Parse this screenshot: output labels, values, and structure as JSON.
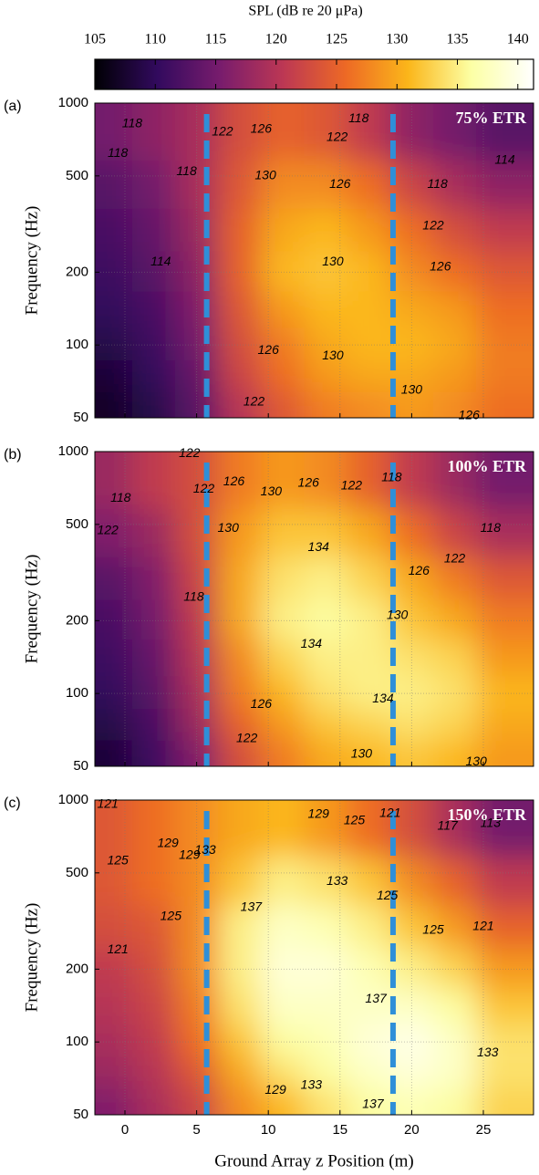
{
  "chart_data": [
    {
      "type": "colorbar",
      "label": "SPL (dB re 20 μPa)",
      "clim": [
        105,
        141.3
      ],
      "ticks": [
        105,
        110,
        115,
        120,
        125,
        130,
        135,
        140
      ],
      "colors": [
        "#000004",
        "#320a5e",
        "#781c6d",
        "#bc3754",
        "#ed6925",
        "#fbb61a",
        "#fcffa4",
        "#ffffff"
      ]
    },
    {
      "type": "heatmap",
      "panel_label": "(a)",
      "title": "75% ETR",
      "ylabel": "Frequency (Hz)",
      "yscale": "log",
      "grid": true,
      "xticklabels": false,
      "xlim": [
        -2.1,
        28.5
      ],
      "xticks": [
        0,
        5,
        10,
        15,
        20,
        25
      ],
      "ylim": [
        50,
        1000
      ],
      "yticks": [
        50,
        100,
        200,
        500,
        1000
      ],
      "x": [
        -1,
        2,
        5,
        8,
        11,
        14,
        17,
        20,
        23,
        26
      ],
      "y": [
        55,
        75,
        100,
        140,
        200,
        300,
        450,
        750
      ],
      "z": [
        [
          107,
          109,
          113,
          120,
          124,
          127,
          128,
          129,
          128,
          126
        ],
        [
          108,
          110,
          114,
          122,
          126,
          129,
          130,
          130,
          129,
          127
        ],
        [
          109,
          111,
          115,
          123,
          127,
          130,
          131,
          131,
          130,
          127
        ],
        [
          110,
          112,
          116,
          124,
          129,
          131,
          131,
          130,
          129,
          126
        ],
        [
          111,
          113,
          117,
          125,
          131,
          132,
          131,
          128,
          126,
          124
        ],
        [
          112,
          114,
          118,
          125,
          130,
          131,
          129,
          126,
          123,
          121
        ],
        [
          113,
          115,
          119,
          124,
          128,
          128,
          126,
          122,
          119,
          117
        ],
        [
          115,
          117,
          119,
          123,
          125,
          124,
          121,
          117,
          115,
          113
        ]
      ],
      "reference_lines": {
        "x": [
          5.7,
          18.7
        ],
        "color": "#2f8fd8"
      },
      "contour_labels": [
        {
          "value": 118,
          "x": 0.5,
          "y": 820
        },
        {
          "value": 118,
          "x": -0.5,
          "y": 620
        },
        {
          "value": 118,
          "x": 4.3,
          "y": 520
        },
        {
          "value": 122,
          "x": 6.8,
          "y": 760
        },
        {
          "value": 126,
          "x": 9.5,
          "y": 780
        },
        {
          "value": 130,
          "x": 9.8,
          "y": 500
        },
        {
          "value": 122,
          "x": 14.8,
          "y": 720
        },
        {
          "value": 118,
          "x": 16.3,
          "y": 860
        },
        {
          "value": 126,
          "x": 15,
          "y": 460
        },
        {
          "value": 114,
          "x": 2.5,
          "y": 220
        },
        {
          "value": 130,
          "x": 14.5,
          "y": 220
        },
        {
          "value": 122,
          "x": 21.5,
          "y": 310
        },
        {
          "value": 126,
          "x": 22,
          "y": 210
        },
        {
          "value": 118,
          "x": 21.8,
          "y": 460
        },
        {
          "value": 114,
          "x": 26.5,
          "y": 580
        },
        {
          "value": 126,
          "x": 10,
          "y": 95
        },
        {
          "value": 130,
          "x": 14.5,
          "y": 90
        },
        {
          "value": 130,
          "x": 20,
          "y": 65
        },
        {
          "value": 122,
          "x": 9,
          "y": 58
        },
        {
          "value": 126,
          "x": 24,
          "y": 51
        }
      ]
    },
    {
      "type": "heatmap",
      "panel_label": "(b)",
      "title": "100% ETR",
      "ylabel": "Frequency (Hz)",
      "yscale": "log",
      "grid": true,
      "xticklabels": false,
      "xlim": [
        -2.1,
        28.5
      ],
      "xticks": [
        0,
        5,
        10,
        15,
        20,
        25
      ],
      "ylim": [
        50,
        1000
      ],
      "yticks": [
        50,
        100,
        200,
        500,
        1000
      ],
      "x": [
        -1,
        2,
        5,
        8,
        11,
        14,
        17,
        20,
        23,
        26
      ],
      "y": [
        55,
        75,
        100,
        140,
        200,
        300,
        450,
        750
      ],
      "z": [
        [
          108,
          111,
          116,
          123,
          127,
          130,
          131,
          132,
          131,
          129
        ],
        [
          109,
          112,
          118,
          125,
          129,
          132,
          133,
          134,
          133,
          130
        ],
        [
          110,
          113,
          119,
          127,
          131,
          134,
          135,
          135,
          134,
          131
        ],
        [
          111,
          114,
          120,
          128,
          133,
          135,
          135,
          134,
          133,
          129
        ],
        [
          112,
          115,
          121,
          130,
          135,
          136,
          135,
          132,
          130,
          127
        ],
        [
          113,
          116,
          122,
          130,
          134,
          135,
          133,
          130,
          127,
          124
        ],
        [
          116,
          118,
          123,
          129,
          132,
          132,
          130,
          126,
          122,
          119
        ],
        [
          118,
          121,
          123,
          127,
          129,
          128,
          125,
          121,
          118,
          115
        ]
      ],
      "reference_lines": {
        "x": [
          5.7,
          18.7
        ],
        "color": "#2f8fd8"
      },
      "contour_labels": [
        {
          "value": 122,
          "x": 4.5,
          "y": 980
        },
        {
          "value": 118,
          "x": -0.3,
          "y": 640
        },
        {
          "value": 122,
          "x": -1.2,
          "y": 470
        },
        {
          "value": 122,
          "x": 5.5,
          "y": 700
        },
        {
          "value": 126,
          "x": 7.6,
          "y": 750
        },
        {
          "value": 130,
          "x": 10.2,
          "y": 680
        },
        {
          "value": 126,
          "x": 12.8,
          "y": 740
        },
        {
          "value": 122,
          "x": 15.8,
          "y": 720
        },
        {
          "value": 118,
          "x": 18.6,
          "y": 780
        },
        {
          "value": 130,
          "x": 7.2,
          "y": 480
        },
        {
          "value": 134,
          "x": 13.5,
          "y": 400
        },
        {
          "value": 118,
          "x": 4.8,
          "y": 250
        },
        {
          "value": 134,
          "x": 13,
          "y": 160
        },
        {
          "value": 130,
          "x": 19,
          "y": 210
        },
        {
          "value": 126,
          "x": 20.5,
          "y": 320
        },
        {
          "value": 122,
          "x": 23,
          "y": 360
        },
        {
          "value": 118,
          "x": 25.5,
          "y": 480
        },
        {
          "value": 126,
          "x": 9.5,
          "y": 90
        },
        {
          "value": 122,
          "x": 8.5,
          "y": 65
        },
        {
          "value": 134,
          "x": 18,
          "y": 95
        },
        {
          "value": 130,
          "x": 16.5,
          "y": 56
        },
        {
          "value": 130,
          "x": 24.5,
          "y": 52
        }
      ]
    },
    {
      "type": "heatmap",
      "panel_label": "(c)",
      "title": "150% ETR",
      "ylabel": "Frequency (Hz)",
      "xlabel": "Ground Array z Position (m)",
      "yscale": "log",
      "grid": true,
      "xticklabels": true,
      "xlim": [
        -2.1,
        28.5
      ],
      "xticks": [
        0,
        5,
        10,
        15,
        20,
        25
      ],
      "ylim": [
        50,
        1000
      ],
      "yticks": [
        50,
        100,
        200,
        500,
        1000
      ],
      "x": [
        -1,
        2,
        5,
        8,
        11,
        14,
        17,
        20,
        23,
        26
      ],
      "y": [
        55,
        75,
        100,
        140,
        200,
        300,
        450,
        750
      ],
      "z": [
        [
          116,
          119,
          122,
          128,
          131,
          134,
          136,
          137,
          136,
          133
        ],
        [
          118,
          120,
          124,
          130,
          134,
          136,
          138,
          139,
          138,
          134
        ],
        [
          119,
          121,
          126,
          132,
          136,
          137,
          139,
          140,
          138,
          134
        ],
        [
          120,
          122,
          127,
          134,
          138,
          138,
          138,
          138,
          136,
          132
        ],
        [
          121,
          123,
          128,
          135,
          139,
          139,
          137,
          135,
          133,
          129
        ],
        [
          123,
          124,
          128,
          135,
          138,
          137,
          135,
          132,
          129,
          125
        ],
        [
          124,
          126,
          128,
          132,
          135,
          134,
          132,
          128,
          125,
          121
        ],
        [
          124,
          126,
          128,
          130,
          131,
          129,
          126,
          123,
          119,
          115
        ]
      ],
      "reference_lines": {
        "x": [
          5.7,
          18.7
        ],
        "color": "#2f8fd8"
      },
      "contour_labels": [
        {
          "value": 121,
          "x": -1.2,
          "y": 960
        },
        {
          "value": 125,
          "x": -0.5,
          "y": 560
        },
        {
          "value": 129,
          "x": 3,
          "y": 660
        },
        {
          "value": 129,
          "x": 4.5,
          "y": 590
        },
        {
          "value": 133,
          "x": 5.6,
          "y": 620
        },
        {
          "value": 137,
          "x": 8.8,
          "y": 360
        },
        {
          "value": 125,
          "x": 3.2,
          "y": 330
        },
        {
          "value": 121,
          "x": -0.5,
          "y": 240
        },
        {
          "value": 129,
          "x": 13.5,
          "y": 870
        },
        {
          "value": 125,
          "x": 16,
          "y": 820
        },
        {
          "value": 121,
          "x": 18.5,
          "y": 880
        },
        {
          "value": 117,
          "x": 22.5,
          "y": 780
        },
        {
          "value": 113,
          "x": 25.5,
          "y": 800
        },
        {
          "value": 133,
          "x": 14.8,
          "y": 460
        },
        {
          "value": 125,
          "x": 18.3,
          "y": 400
        },
        {
          "value": 125,
          "x": 21.5,
          "y": 290
        },
        {
          "value": 121,
          "x": 25,
          "y": 300
        },
        {
          "value": 137,
          "x": 17.5,
          "y": 150
        },
        {
          "value": 133,
          "x": 25.3,
          "y": 90
        },
        {
          "value": 129,
          "x": 10.5,
          "y": 63
        },
        {
          "value": 133,
          "x": 13,
          "y": 66
        },
        {
          "value": 137,
          "x": 17.3,
          "y": 55
        }
      ]
    }
  ]
}
